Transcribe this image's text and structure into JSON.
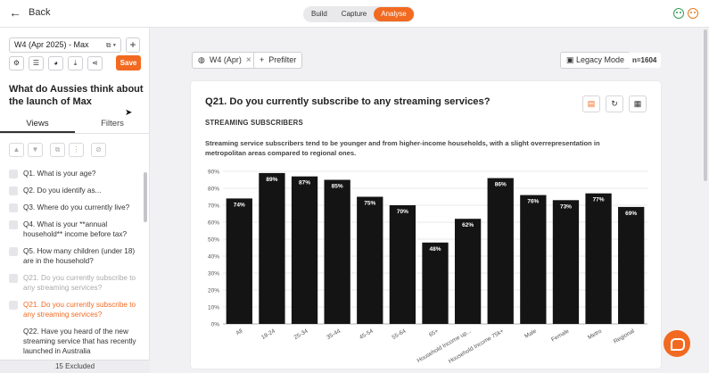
{
  "topbar": {
    "back_label": "Back",
    "modes": [
      "Build",
      "Capture",
      "Analyse"
    ],
    "active_mode": "Analyse",
    "feedback_icons": [
      "happy-face-icon",
      "sad-face-icon"
    ],
    "accent": "#f26a21"
  },
  "sidebar": {
    "wave_select": "W4 (Apr 2025) - Max",
    "save_label": "Save",
    "survey_title": "What do Aussies think about the launch of Max",
    "tabs": [
      "Views",
      "Filters"
    ],
    "active_tab": "Views",
    "questions": [
      {
        "label": "Q1. What is your age?",
        "state": "normal"
      },
      {
        "label": "Q2. Do you identify as...",
        "state": "normal"
      },
      {
        "label": "Q3. Where do you currently live?",
        "state": "normal"
      },
      {
        "label": "Q4. What is your **annual household** income before tax?",
        "state": "normal"
      },
      {
        "label": "Q5. How many children (under 18) are in the household?",
        "state": "normal"
      },
      {
        "label": "Q21. Do you currently subscribe to any streaming services?",
        "state": "muted"
      },
      {
        "label": "Q21. Do you currently subscribe to any streaming services?",
        "state": "active"
      },
      {
        "label": "Q22. Have you heard of the new streaming service that has recently launched in Australia",
        "state": "normal"
      }
    ],
    "excluded_label": "15 Excluded"
  },
  "filters": {
    "wave_chip": "W4 (Apr)",
    "prefilter_label": "Prefilter",
    "legacy_label": "Legacy Mode",
    "n_label": "n=1604"
  },
  "card": {
    "question_title": "Q21. Do you currently subscribe to any streaming services?",
    "subtitle": "STREAMING SUBSCRIBERS",
    "insight": "Streaming service subscribers tend to be younger and from higher-income households, with a slight overrepresentation in metropolitan areas compared to regional ones."
  },
  "chart_data": {
    "type": "bar",
    "categories": [
      "All",
      "18-24",
      "25-34",
      "35-44",
      "45-54",
      "55-64",
      "65+",
      "Household Income up...",
      "Household Income 75k+",
      "Male",
      "Female",
      "Metro",
      "Regional"
    ],
    "values": [
      74,
      89,
      87,
      85,
      75,
      70,
      48,
      62,
      86,
      76,
      73,
      77,
      69
    ],
    "value_labels": [
      "74%",
      "89%",
      "87%",
      "85%",
      "75%",
      "70%",
      "48%",
      "62%",
      "86%",
      "76%",
      "73%",
      "77%",
      "69%"
    ],
    "ylim": [
      0,
      90
    ],
    "yticks": [
      0,
      10,
      20,
      30,
      40,
      50,
      60,
      70,
      80,
      90
    ],
    "ytick_labels": [
      "0%",
      "10%",
      "20%",
      "30%",
      "40%",
      "50%",
      "60%",
      "70%",
      "80%",
      "90%"
    ],
    "grid": true,
    "bar_color": "#141414"
  }
}
